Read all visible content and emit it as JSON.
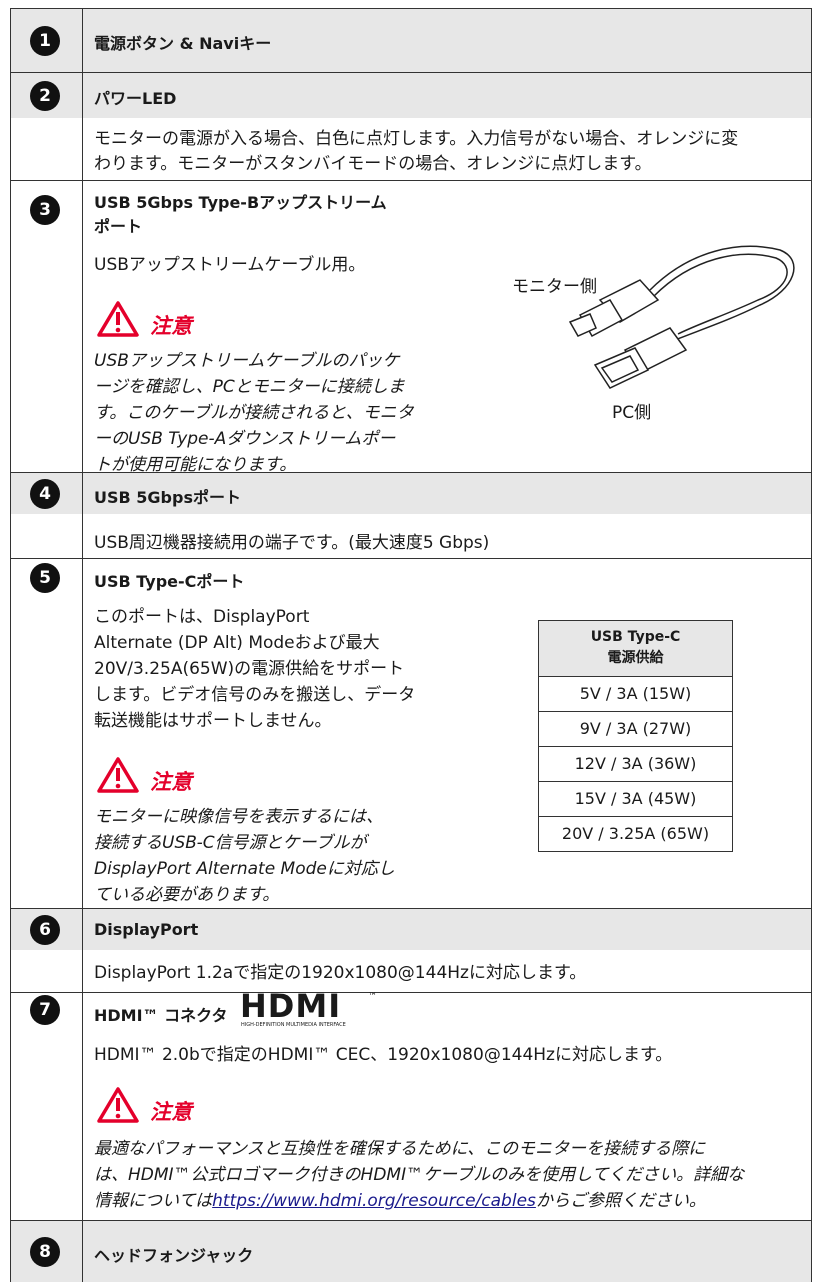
{
  "rows": [
    {
      "number": "1",
      "title": "電源ボタン & Naviキー"
    },
    {
      "number": "2",
      "title": "パワーLED",
      "body": [
        "モニターの電源が入る場合、白色に点灯します。入力信号がない場合、オレンジに変",
        "わります。モニターがスタンバイモードの場合、オレンジに点灯します。"
      ]
    },
    {
      "number": "3",
      "title": [
        "USB 5Gbps Type-Bアップストリーム",
        "ポート"
      ],
      "body": [
        "USBアップストリームケーブル用。"
      ],
      "caution": {
        "label": "注意",
        "lines": [
          "USBアップストリームケーブルのパッケ",
          "ージを確認し、PCとモニターに接続しま",
          "す。このケーブルが接続されると、モニタ",
          "ーのUSB Type-Aダウンストリームポー",
          "トが使用可能になります。"
        ]
      },
      "figure": {
        "monitor_side": "モニター側",
        "pc_side": "PC側"
      }
    },
    {
      "number": "4",
      "title": "USB 5Gbpsポート",
      "body": [
        "USB周辺機器接続用の端子です。(最大速度5 Gbps)"
      ]
    },
    {
      "number": "5",
      "title": "USB Type-Cポート",
      "body": [
        "このポートは、DisplayPort",
        "Alternate (DP Alt) Modeおよび最大",
        "20V/3.25A(65W)の電源供給をサポート",
        "します。ビデオ信号のみを搬送し、データ",
        "転送機能はサポートしません。"
      ],
      "caution": {
        "label": "注意",
        "lines": [
          "モニターに映像信号を表示するには、",
          "接続するUSB-C信号源とケーブルが",
          "DisplayPort Alternate Modeに対応し",
          "ている必要があります。"
        ]
      },
      "power_table": {
        "header": [
          "USB Type-C",
          "電源供給"
        ],
        "rows": [
          "5V / 3A (15W)",
          "9V / 3A (27W)",
          "12V / 3A (36W)",
          "15V / 3A (45W)",
          "20V / 3.25A (65W)"
        ]
      }
    },
    {
      "number": "6",
      "title": "DisplayPort",
      "body": [
        "DisplayPort 1.2aで指定の1920x1080@144Hzに対応します。"
      ]
    },
    {
      "number": "7",
      "title": "HDMI™ コネクタ",
      "logo": {
        "mark": "HDMI",
        "tm": "™",
        "tagline": "HIGH-DEFINITION MULTIMEDIA INTERFACE"
      },
      "body": [
        "HDMI™ 2.0bで指定のHDMI™ CEC、1920x1080@144Hzに対応します。"
      ],
      "caution": {
        "label": "注意",
        "lines": [
          "最適なパフォーマンスと互換性を確保するために、このモニターを接続する際に",
          "は、HDMI™公式ロゴマーク付きのHDMI™ケーブルのみを使用してください。詳細な"
        ],
        "link_line": {
          "before": "情報については",
          "link": "https://www.hdmi.org/resource/cables",
          "after": "からご参照ください。"
        }
      }
    },
    {
      "number": "8",
      "title": "ヘッドフォンジャック"
    }
  ]
}
